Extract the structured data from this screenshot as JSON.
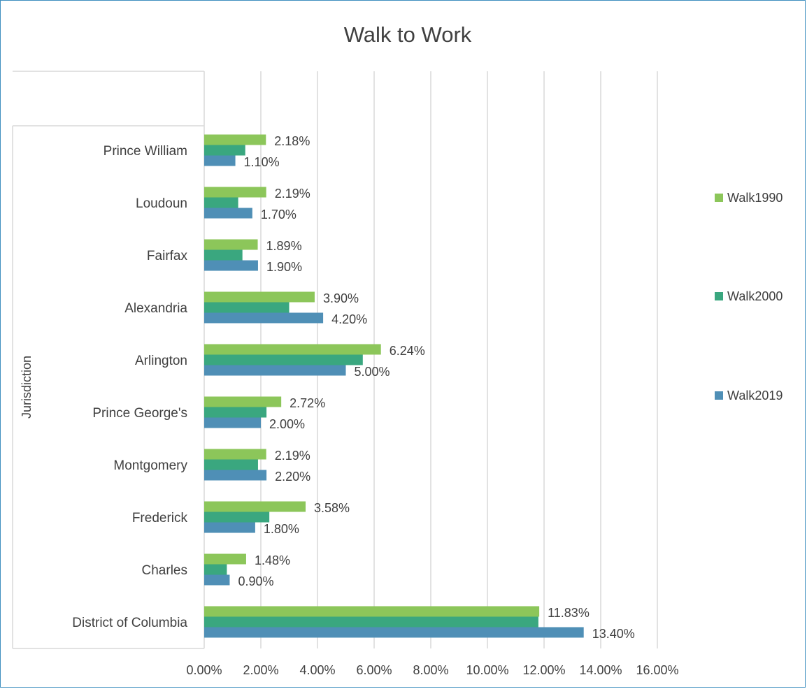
{
  "chart_data": {
    "type": "bar",
    "orientation": "horizontal",
    "title": "Walk to Work",
    "xlabel": "",
    "ylabel": "Jurisdiction",
    "xlim": [
      0,
      16
    ],
    "x_ticks": [
      "0.00%",
      "2.00%",
      "4.00%",
      "6.00%",
      "8.00%",
      "10.00%",
      "12.00%",
      "14.00%",
      "16.00%"
    ],
    "grid": true,
    "legend_position": "right",
    "categories": [
      "District of Columbia",
      "Charles",
      "Frederick",
      "Montgomery",
      "Prince George's",
      "Arlington",
      "Alexandria",
      "Fairfax",
      "Loudoun",
      "Prince William"
    ],
    "series": [
      {
        "name": "Walk2019",
        "color": "#4f8fb6",
        "values": [
          13.4,
          0.9,
          1.8,
          2.2,
          2.0,
          5.0,
          4.2,
          1.9,
          1.7,
          1.1
        ],
        "labels": [
          "13.40%",
          "0.90%",
          "1.80%",
          "2.20%",
          "2.00%",
          "5.00%",
          "4.20%",
          "1.90%",
          "1.70%",
          "1.10%"
        ]
      },
      {
        "name": "Walk2000",
        "color": "#3aa77f",
        "values": [
          11.8,
          0.8,
          2.3,
          1.9,
          2.2,
          5.6,
          3.0,
          1.35,
          1.2,
          1.45
        ],
        "labels": [
          "",
          "",
          "",
          "",
          "",
          "",
          "",
          "",
          "",
          ""
        ]
      },
      {
        "name": "Walk1990",
        "color": "#8cc65a",
        "values": [
          11.83,
          1.48,
          3.58,
          2.19,
          2.72,
          6.24,
          3.9,
          1.89,
          2.19,
          2.18
        ],
        "labels": [
          "11.83%",
          "1.48%",
          "3.58%",
          "2.19%",
          "2.72%",
          "6.24%",
          "3.90%",
          "1.89%",
          "2.19%",
          "2.18%"
        ]
      }
    ],
    "legend_order": [
      "Walk1990",
      "Walk2000",
      "Walk2019"
    ]
  }
}
